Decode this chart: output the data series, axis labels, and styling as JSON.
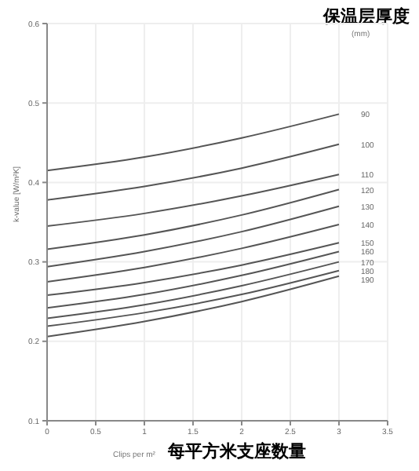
{
  "chart_data": {
    "type": "line",
    "title": "保温层厚度",
    "legend_title": "(mm)",
    "xlabel": "Clips per m²",
    "ylabel": "k-value [W/m²K]",
    "annotations": [
      "每平方米支座数量"
    ],
    "x": [
      0,
      1,
      2,
      3
    ],
    "xlim": [
      0,
      3.5
    ],
    "xticks": [
      0,
      0.5,
      1,
      1.5,
      2,
      2.5,
      3,
      3.5
    ],
    "ylim": [
      0.1,
      0.6
    ],
    "yticks": [
      0.1,
      0.2,
      0.3,
      0.4,
      0.5,
      0.6
    ],
    "grid": true,
    "marker": "none",
    "legend": false,
    "series": [
      {
        "name": "90",
        "color": "#555555",
        "values": [
          0.415,
          0.432,
          0.456,
          0.486
        ]
      },
      {
        "name": "100",
        "color": "#555555",
        "values": [
          0.378,
          0.395,
          0.418,
          0.448
        ]
      },
      {
        "name": "110",
        "color": "#555555",
        "values": [
          0.345,
          0.361,
          0.383,
          0.41
        ]
      },
      {
        "name": "120",
        "color": "#555555",
        "values": [
          0.316,
          0.334,
          0.359,
          0.391
        ]
      },
      {
        "name": "130",
        "color": "#555555",
        "values": [
          0.294,
          0.313,
          0.338,
          0.37
        ]
      },
      {
        "name": "140",
        "color": "#555555",
        "values": [
          0.275,
          0.293,
          0.317,
          0.347
        ]
      },
      {
        "name": "150",
        "color": "#555555",
        "values": [
          0.258,
          0.274,
          0.296,
          0.324
        ]
      },
      {
        "name": "160",
        "color": "#555555",
        "values": [
          0.242,
          0.259,
          0.283,
          0.313
        ]
      },
      {
        "name": "170",
        "color": "#555555",
        "values": [
          0.229,
          0.246,
          0.27,
          0.3
        ]
      },
      {
        "name": "180",
        "color": "#555555",
        "values": [
          0.219,
          0.236,
          0.259,
          0.289
        ]
      },
      {
        "name": "190",
        "color": "#555555",
        "values": [
          0.206,
          0.225,
          0.25,
          0.282
        ]
      }
    ]
  }
}
